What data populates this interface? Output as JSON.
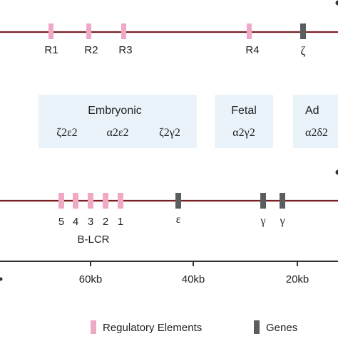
{
  "alpha_locus": {
    "elements": [
      "R1",
      "R2",
      "R3",
      "R4"
    ],
    "genes": [
      "ζ"
    ]
  },
  "hemoglobin_stages": {
    "embryonic": {
      "title": "Embryonic",
      "forms": [
        "ζ2ε2",
        "α2ε2",
        "ζ2γ2"
      ]
    },
    "fetal": {
      "title": "Fetal",
      "forms": [
        "α2γ2"
      ]
    },
    "adult": {
      "title": "Ad",
      "forms": [
        "α2δ2"
      ]
    }
  },
  "beta_locus": {
    "lcr_sites": [
      "5",
      "4",
      "3",
      "2",
      "1"
    ],
    "lcr_label": "B-LCR",
    "genes": [
      "ε",
      "γ",
      "γ"
    ]
  },
  "scale_axis": {
    "ticks": [
      "60kb",
      "40kb",
      "20kb"
    ]
  },
  "legend": {
    "regulatory": "Regulatory Elements",
    "genes": "Genes"
  },
  "colors": {
    "chromosome_line": "#7a1f22",
    "regulatory": "#f0a9c4",
    "gene": "#5a5e61",
    "stage_box": "#eaf3fa"
  }
}
